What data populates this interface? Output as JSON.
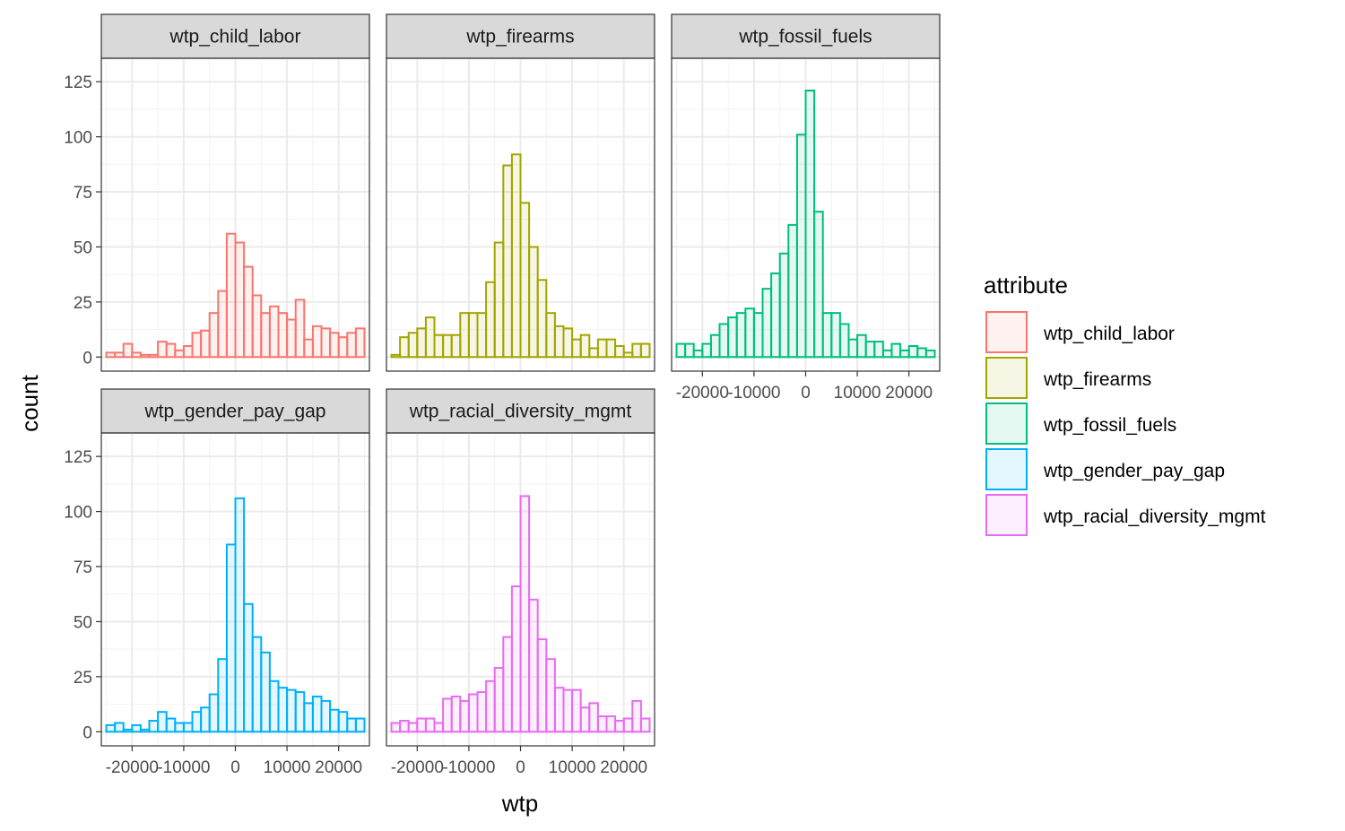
{
  "chart_data": {
    "type": "bar",
    "subtype": "faceted-histogram",
    "xlabel": "wtp",
    "ylabel": "count",
    "ylim": [
      0,
      125
    ],
    "y_ticks": [
      0,
      25,
      50,
      75,
      100,
      125
    ],
    "xlim": [
      -25000,
      25000
    ],
    "x_ticks": [
      -20000,
      -10000,
      0,
      10000,
      20000
    ],
    "x_tick_labels": [
      "-20000",
      "-10000",
      "0",
      "10000",
      "20000"
    ],
    "bin_width": 1667,
    "bin_centers": [
      -24167,
      -22500,
      -20833,
      -19167,
      -17500,
      -15833,
      -14167,
      -12500,
      -10833,
      -9167,
      -7500,
      -5833,
      -4167,
      -2500,
      -833,
      833,
      2500,
      4167,
      5833,
      7500,
      9167,
      10833,
      12500,
      14167,
      15833,
      17500,
      19167,
      20833,
      22500,
      24167
    ],
    "grid": true,
    "legend": {
      "title": "attribute",
      "position": "right"
    },
    "series": [
      {
        "name": "wtp_child_labor",
        "color": "#F8766D",
        "values": [
          2,
          2,
          6,
          2,
          1,
          1,
          7,
          6,
          3,
          5,
          11,
          12,
          20,
          30,
          56,
          52,
          41,
          28,
          20,
          23,
          20,
          17,
          26,
          8,
          14,
          13,
          11,
          9,
          11,
          13
        ]
      },
      {
        "name": "wtp_firearms",
        "color": "#A3A500",
        "values": [
          1,
          9,
          11,
          13,
          18,
          10,
          10,
          10,
          20,
          20,
          20,
          34,
          52,
          87,
          92,
          70,
          50,
          35,
          20,
          14,
          13,
          8,
          10,
          4,
          8,
          8,
          5,
          2,
          6,
          6
        ]
      },
      {
        "name": "wtp_fossil_fuels",
        "color": "#00BF7D",
        "values": [
          6,
          6,
          3,
          6,
          10,
          15,
          18,
          20,
          22,
          20,
          31,
          38,
          47,
          60,
          101,
          121,
          66,
          20,
          20,
          15,
          8,
          10,
          7,
          7,
          3,
          6,
          3,
          5,
          4,
          3
        ]
      },
      {
        "name": "wtp_gender_pay_gap",
        "color": "#00B0F6",
        "values": [
          3,
          4,
          1,
          3,
          1,
          5,
          9,
          6,
          4,
          4,
          9,
          11,
          17,
          33,
          85,
          106,
          58,
          43,
          36,
          23,
          20,
          19,
          18,
          13,
          16,
          14,
          10,
          9,
          6,
          6
        ]
      },
      {
        "name": "wtp_racial_diversity_mgmt",
        "color": "#E76BF3",
        "values": [
          4,
          5,
          4,
          6,
          6,
          4,
          15,
          16,
          14,
          17,
          18,
          23,
          29,
          43,
          66,
          107,
          60,
          42,
          33,
          20,
          19,
          19,
          11,
          13,
          7,
          7,
          5,
          6,
          14,
          6
        ]
      }
    ]
  }
}
